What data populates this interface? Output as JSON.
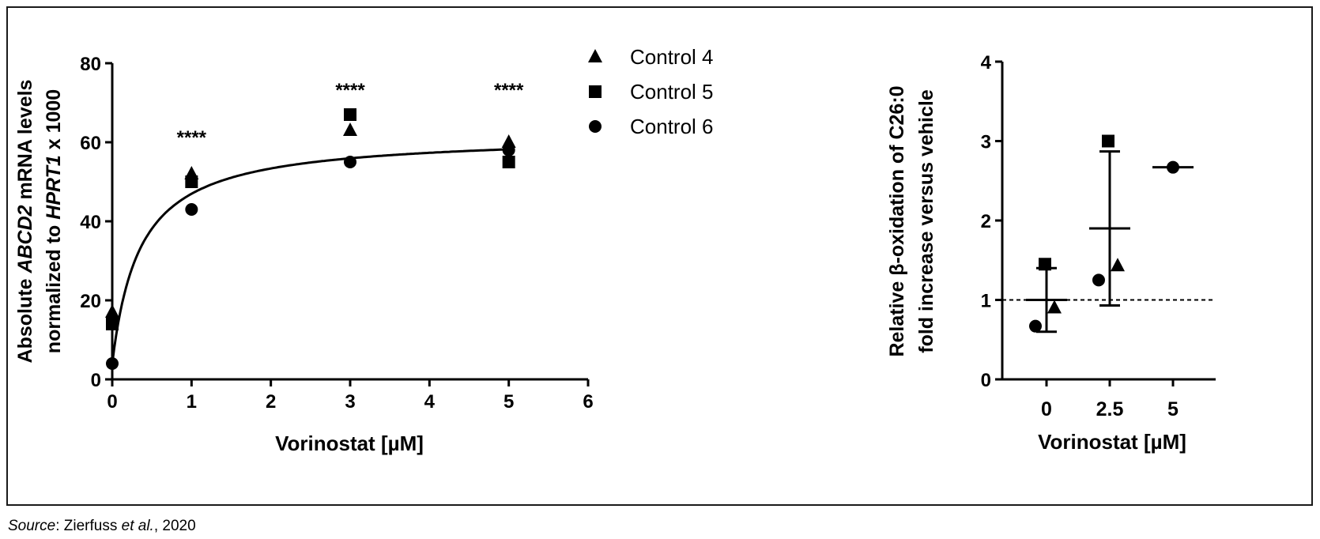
{
  "source": {
    "label": "Source",
    "sep": ": ",
    "author": "Zierfuss ",
    "etal": "et al.",
    "year": ", 2020"
  },
  "chart_data": [
    {
      "type": "scatter",
      "ylabel_line1_parts": [
        "Absolute ",
        "ABCD2",
        " mRNA levels"
      ],
      "ylabel_line2_parts": [
        "normalized to ",
        "HPRT1",
        " x 1000"
      ],
      "xlabel": "Vorinostat [µM]",
      "xlim": [
        0,
        6
      ],
      "ylim": [
        0,
        80
      ],
      "xticks": [
        0,
        1,
        2,
        3,
        4,
        5,
        6
      ],
      "yticks": [
        0,
        20,
        40,
        60,
        80
      ],
      "legend_position": "top-right",
      "series": [
        {
          "name": "Control 4",
          "marker": "triangle",
          "x": [
            0,
            1,
            3,
            5
          ],
          "y": [
            17,
            52,
            63,
            60
          ]
        },
        {
          "name": "Control 5",
          "marker": "square",
          "x": [
            0,
            1,
            3,
            5
          ],
          "y": [
            14,
            50,
            67,
            55
          ]
        },
        {
          "name": "Control 6",
          "marker": "circle",
          "x": [
            0,
            1,
            3,
            5
          ],
          "y": [
            4,
            43,
            55,
            58
          ]
        }
      ],
      "fit_curve": {
        "y0": 4,
        "ymax": 62,
        "half": 0.35
      },
      "annotations": [
        {
          "x": 1,
          "y": 62,
          "text": "****"
        },
        {
          "x": 3,
          "y": 74,
          "text": "****"
        },
        {
          "x": 5,
          "y": 74,
          "text": "****"
        }
      ]
    },
    {
      "type": "scatter",
      "ylabel_line1": "Relative β-oxidation of C26:0",
      "ylabel_line2": "fold increase versus vehicle",
      "xlabel": "Vorinostat [µM]",
      "categories": [
        "0",
        "2.5",
        "5"
      ],
      "ylim": [
        0,
        4
      ],
      "yticks": [
        0,
        1,
        2,
        3,
        4
      ],
      "reference_line": 1,
      "points": [
        {
          "category": "0",
          "marker": "square",
          "y": 1.45
        },
        {
          "category": "0",
          "marker": "triangle",
          "y": 0.9
        },
        {
          "category": "0",
          "marker": "circle",
          "y": 0.67
        },
        {
          "category": "2.5",
          "marker": "square",
          "y": 3.0
        },
        {
          "category": "2.5",
          "marker": "triangle",
          "y": 1.43
        },
        {
          "category": "2.5",
          "marker": "circle",
          "y": 1.25
        },
        {
          "category": "5",
          "marker": "circle",
          "y": 2.67
        }
      ],
      "summary": [
        {
          "category": "0",
          "mean": 1.0,
          "low": 0.6,
          "high": 1.4
        },
        {
          "category": "2.5",
          "mean": 1.9,
          "low": 0.93,
          "high": 2.87
        },
        {
          "category": "5",
          "mean": 2.67
        }
      ]
    }
  ]
}
